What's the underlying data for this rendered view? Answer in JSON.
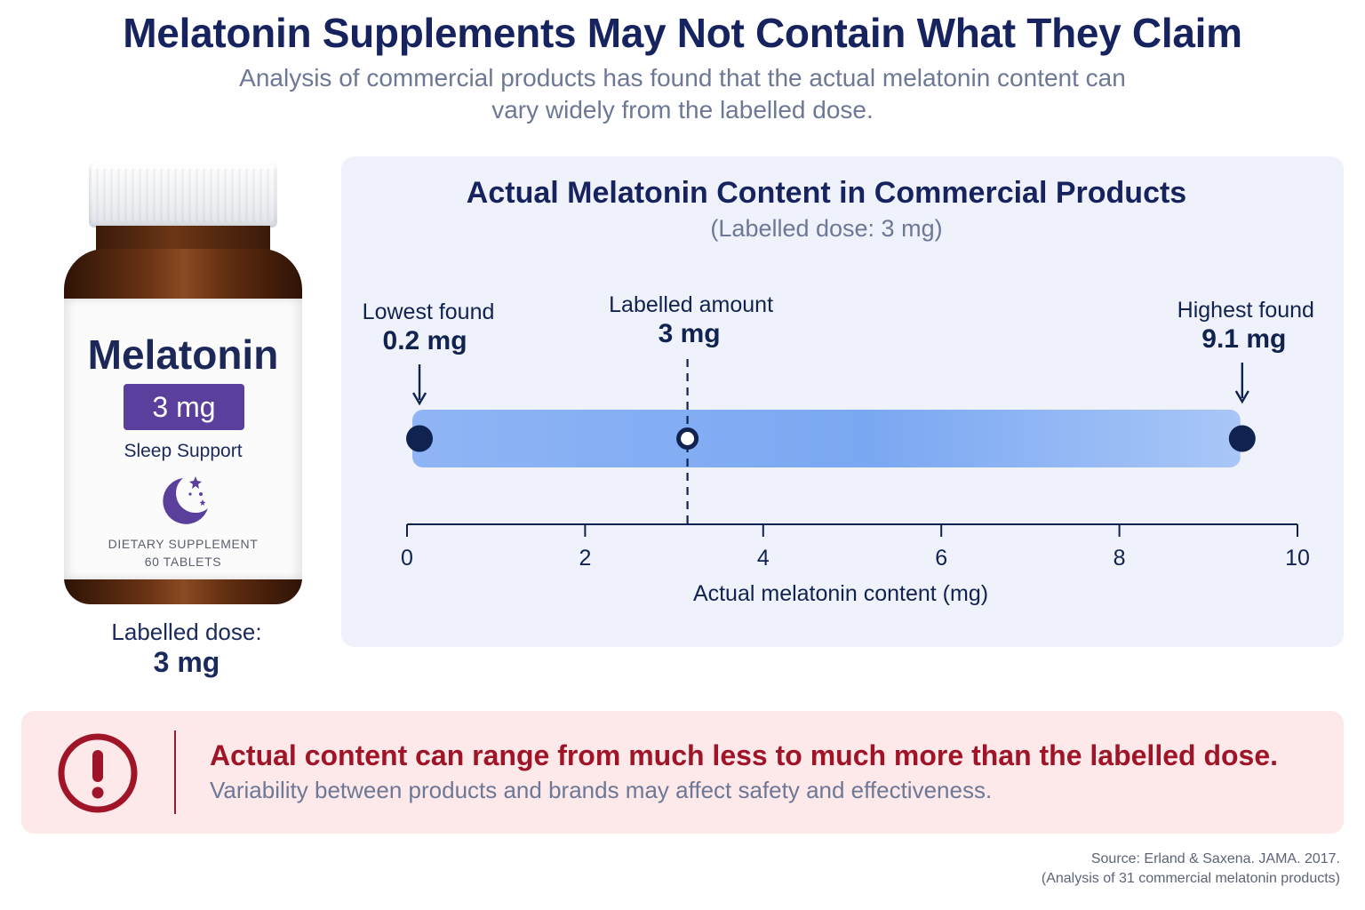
{
  "header": {
    "title": "Melatonin Supplements May Not Contain What They Claim",
    "subtitle": "Analysis of commercial products has found that the actual melatonin content can vary widely from the labelled dose."
  },
  "bottle": {
    "name": "Melatonin",
    "dose": "3 mg",
    "tagline": "Sleep Support",
    "line1": "DIETARY SUPPLEMENT",
    "line2": "60 TABLETS",
    "caption_label": "Labelled dose:",
    "caption_value": "3 mg",
    "label_color": "#5b3f9c",
    "glass_color": "#6a3314"
  },
  "chart_data": {
    "type": "range",
    "title": "Actual Melatonin Content in Commercial Products",
    "subtitle": "(Labelled dose: 3 mg)",
    "xlabel": "Actual melatonin content (mg)",
    "xlim": [
      0,
      10
    ],
    "xticks": [
      0,
      2,
      4,
      6,
      8,
      10
    ],
    "range": [
      0.2,
      9.1
    ],
    "points": [
      {
        "label": "Lowest found",
        "value_label": "0.2 mg",
        "value": 0.2,
        "style": "filled"
      },
      {
        "label": "Labelled amount",
        "value_label": "3 mg",
        "value": 3,
        "style": "hollow"
      },
      {
        "label": "Highest found",
        "value_label": "9.1 mg",
        "value": 9.1,
        "style": "filled"
      }
    ],
    "bar_color": "#7aa8f2",
    "point_color": "#10224f"
  },
  "alert": {
    "headline": "Actual content can range from much less to much more than the labelled dose.",
    "body": "Variability between products and brands may affect safety and effectiveness.",
    "color": "#a01428"
  },
  "source": {
    "line1": "Source: Erland & Saxena. JAMA. 2017.",
    "line2": "(Analysis of 31 commercial melatonin products)"
  }
}
